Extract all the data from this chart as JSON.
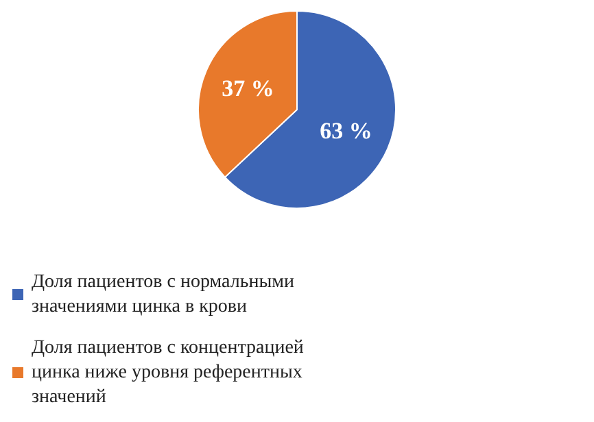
{
  "chart_data": {
    "type": "pie",
    "categories": [
      "Доля пациентов с нормальными значениями цинка в крови",
      "Доля пациентов с концентрацией цинка ниже уровня референтных значений"
    ],
    "values": [
      63,
      37
    ],
    "colors": [
      "#3d65b5",
      "#e8792b"
    ],
    "value_labels": [
      "63 %",
      "37 %"
    ],
    "legend": "bottom"
  }
}
